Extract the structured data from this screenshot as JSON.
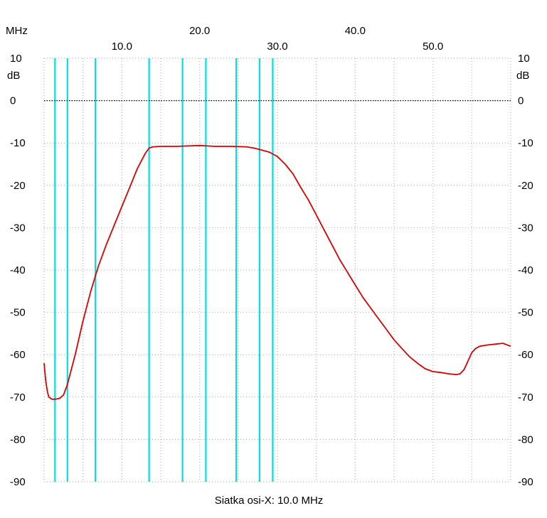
{
  "chart_data": {
    "type": "line",
    "x_unit_label": "MHz",
    "y_unit_label": "dB",
    "footer": "Siatka osi-X: 10.0 MHz",
    "xlim": [
      0,
      60
    ],
    "ylim": [
      -90,
      10
    ],
    "x_ticks_upper": [
      "20.0",
      "40.0"
    ],
    "x_ticks_lower": [
      "10.0",
      "30.0",
      "50.0"
    ],
    "y_ticks": [
      "10",
      "0",
      "-10",
      "-20",
      "-30",
      "-40",
      "-50",
      "-60",
      "-70",
      "-80",
      "-90"
    ],
    "grid": true,
    "reference_line_db": 0,
    "markers_mhz": [
      1.4,
      3.0,
      6.6,
      13.5,
      17.8,
      20.8,
      24.7,
      27.7,
      29.4
    ],
    "colors": {
      "curve": "#dd0000",
      "markers": "#00e0e0",
      "grid": "#a9a9a9",
      "reference": "#000000"
    },
    "series": [
      {
        "x": [
          0.0,
          0.2,
          0.4,
          0.6,
          1.0,
          1.5,
          2.0,
          2.5,
          3.0,
          4.0,
          5.0,
          6.0,
          7.0,
          8.0,
          9.0,
          10.0,
          11.0,
          12.0,
          13.0,
          13.5,
          14.0,
          15.0,
          17.0,
          20.0,
          21.0,
          22.0,
          24.0,
          26.0,
          27.0,
          28.0,
          29.0,
          30.0,
          31.0,
          32.0,
          33.0,
          34.0,
          35.0,
          36.0,
          37.0,
          38.0,
          39.0,
          40.0,
          41.0,
          42.0,
          43.0,
          44.0,
          45.0,
          46.0,
          47.0,
          48.0,
          49.0,
          50.0,
          51.0,
          52.0,
          53.0,
          53.5,
          54.0,
          54.5,
          55.0,
          55.5,
          56.0,
          57.0,
          58.0,
          59.0,
          60.0
        ],
        "y": [
          -62,
          -66,
          -68.5,
          -70,
          -70.5,
          -70.5,
          -70.3,
          -69.5,
          -67,
          -60,
          -52,
          -45,
          -39,
          -34,
          -29.5,
          -25,
          -20.5,
          -16,
          -12.5,
          -11.2,
          -10.9,
          -10.8,
          -10.8,
          -10.6,
          -10.7,
          -10.8,
          -10.8,
          -10.9,
          -11.2,
          -11.7,
          -12.2,
          -13.2,
          -15,
          -17.3,
          -20.5,
          -23.5,
          -27,
          -30.5,
          -34,
          -37.5,
          -40.5,
          -43.5,
          -46.5,
          -49,
          -51.5,
          -54,
          -56.5,
          -58.5,
          -60.5,
          -62,
          -63.3,
          -64,
          -64.2,
          -64.5,
          -64.7,
          -64.5,
          -63.5,
          -61.5,
          -59.5,
          -58.5,
          -58,
          -57.7,
          -57.5,
          -57.3,
          -58
        ]
      }
    ]
  }
}
